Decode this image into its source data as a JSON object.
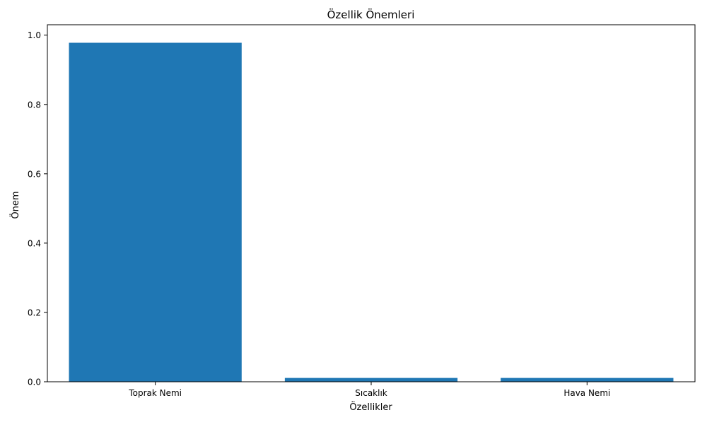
{
  "chart_data": {
    "type": "bar",
    "title": "Özellik Önemleri",
    "xlabel": "Özellikler",
    "ylabel": "Önem",
    "categories": [
      "Toprak Nemi",
      "Sıcaklık",
      "Hava Nemi"
    ],
    "values": [
      0.978,
      0.011,
      0.011
    ],
    "ylim": [
      0,
      1.03
    ],
    "yticks": [
      "0.0",
      "0.2",
      "0.4",
      "0.6",
      "0.8",
      "1.0"
    ],
    "grid": false,
    "bar_color": "#1f77b4"
  }
}
